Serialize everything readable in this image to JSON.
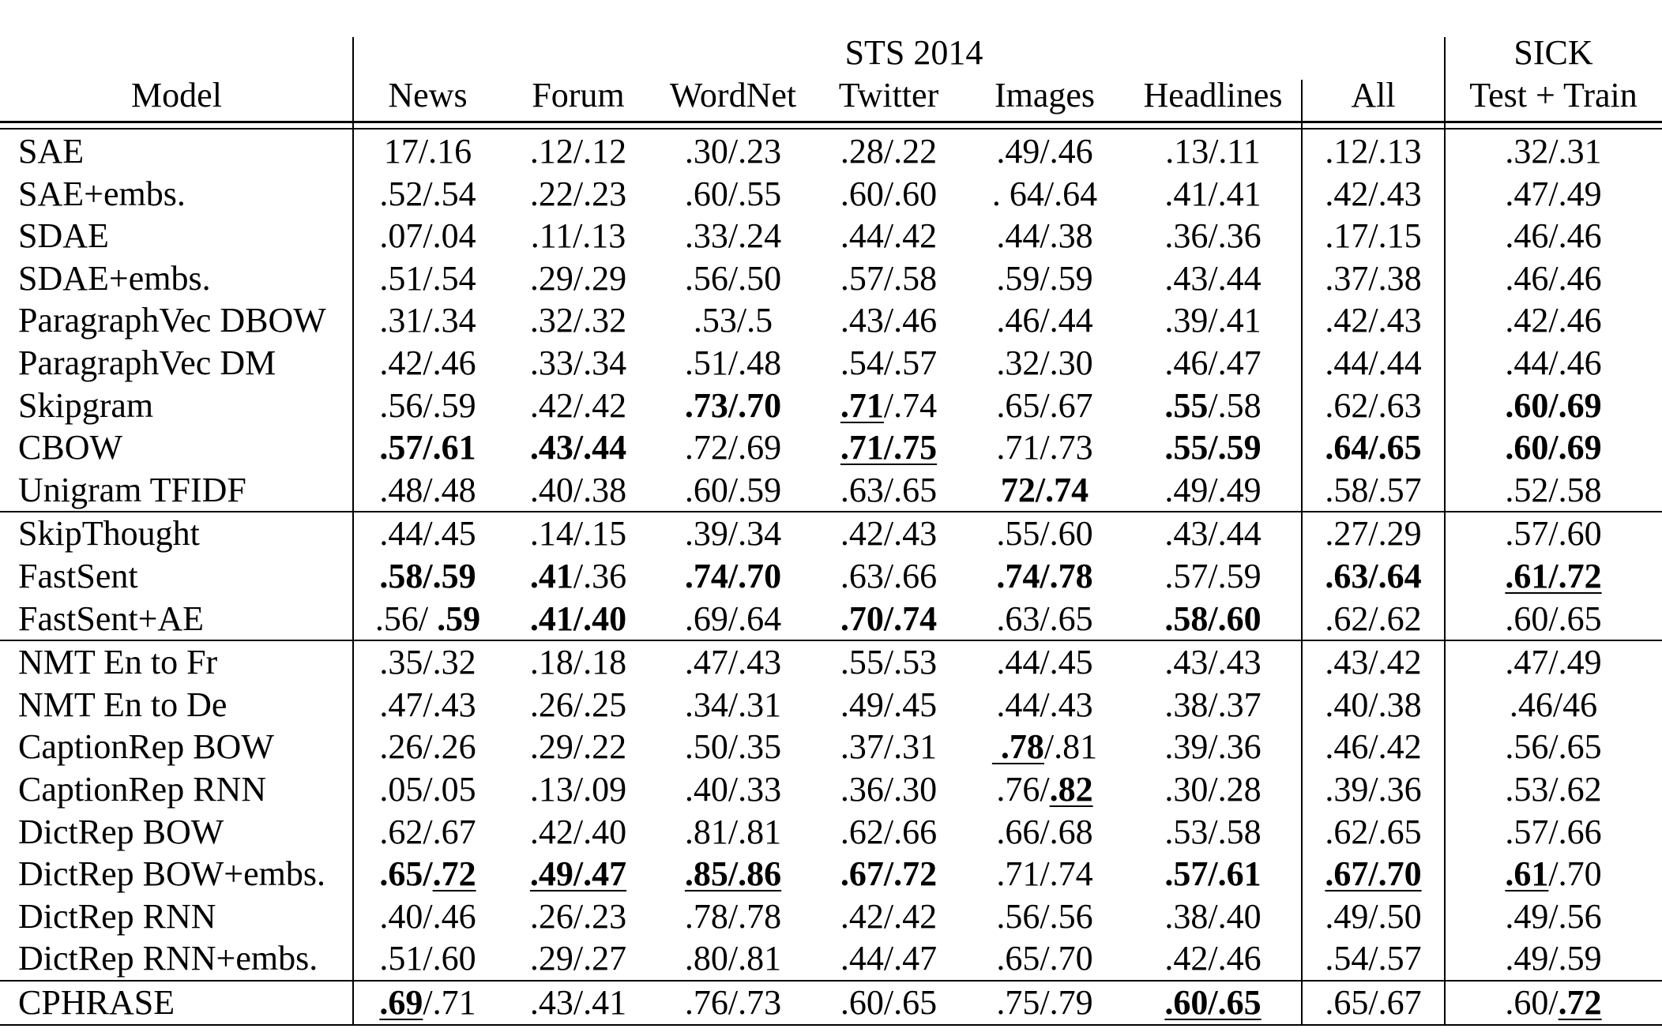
{
  "table": {
    "header": {
      "model_label": "Model",
      "sts_label": "STS 2014",
      "sick_label": "SICK",
      "columns": [
        "News",
        "Forum",
        "WordNet",
        "Twitter",
        "Images",
        "Headlines",
        "All",
        "Test + Train"
      ]
    },
    "groups": [
      {
        "rows": [
          {
            "model": "SAE",
            "cells": [
              "17/.16",
              ".12/.12",
              ".30/.23",
              ".28/.22",
              ".49/.46",
              ".13/.11",
              ".12/.13",
              ".32/.31"
            ]
          },
          {
            "model": "SAE+embs.",
            "cells": [
              ".52/.54",
              ".22/.23",
              ".60/.55",
              ".60/.60",
              ". 64/.64",
              ".41/.41",
              ".42/.43",
              ".47/.49"
            ]
          },
          {
            "model": "SDAE",
            "cells": [
              ".07/.04",
              ".11/.13",
              ".33/.24",
              ".44/.42",
              ".44/.38",
              ".36/.36",
              ".17/.15",
              ".46/.46"
            ]
          },
          {
            "model": "SDAE+embs.",
            "cells": [
              ".51/.54",
              ".29/.29",
              ".56/.50",
              ".57/.58",
              ".59/.59",
              ".43/.44",
              ".37/.38",
              ".46/.46"
            ]
          },
          {
            "model": "ParagraphVec DBOW",
            "cells": [
              ".31/.34",
              ".32/.32",
              ".53/.5",
              ".43/.46",
              ".46/.44",
              ".39/.41",
              ".42/.43",
              ".42/.46"
            ]
          },
          {
            "model": "ParagraphVec DM",
            "cells": [
              ".42/.46",
              ".33/.34",
              ".51/.48",
              ".54/.57",
              ".32/.30",
              ".46/.47",
              ".44/.44",
              ".44/.46"
            ]
          },
          {
            "model": "Skipgram",
            "cells": [
              ".56/.59",
              ".42/.42",
              [
                {
                  "text": ".73/.70",
                  "bold": true
                }
              ],
              [
                {
                  "text": ".71",
                  "bold": true,
                  "underline": true
                },
                {
                  "text": "/.74"
                }
              ],
              ".65/.67",
              [
                {
                  "text": ".55",
                  "bold": true
                },
                {
                  "text": "/.58"
                }
              ],
              ".62/.63",
              [
                {
                  "text": ".60/.69",
                  "bold": true
                }
              ]
            ]
          },
          {
            "model": "CBOW",
            "cells": [
              [
                {
                  "text": ".57/.61",
                  "bold": true
                }
              ],
              [
                {
                  "text": ".43/.44",
                  "bold": true
                }
              ],
              ".72/.69",
              [
                {
                  "text": ".71/.75",
                  "bold": true,
                  "underline": true
                }
              ],
              ".71/.73",
              [
                {
                  "text": ".55/.59",
                  "bold": true
                }
              ],
              [
                {
                  "text": ".64/.65",
                  "bold": true
                }
              ],
              [
                {
                  "text": ".60/.69",
                  "bold": true
                }
              ]
            ]
          },
          {
            "model": "Unigram TFIDF",
            "cells": [
              ".48/.48",
              ".40/.38",
              ".60/.59",
              ".63/.65",
              [
                {
                  "text": "72/.74",
                  "bold": true
                }
              ],
              ".49/.49",
              ".58/.57",
              ".52/.58"
            ]
          }
        ]
      },
      {
        "rows": [
          {
            "model": "SkipThought",
            "cells": [
              ".44/.45",
              ".14/.15",
              ".39/.34",
              ".42/.43",
              ".55/.60",
              ".43/.44",
              ".27/.29",
              ".57/.60"
            ]
          },
          {
            "model": "FastSent",
            "cells": [
              [
                {
                  "text": ".58/.59",
                  "bold": true
                }
              ],
              [
                {
                  "text": ".41",
                  "bold": true
                },
                {
                  "text": "/.36"
                }
              ],
              [
                {
                  "text": ".74/.70",
                  "bold": true
                }
              ],
              ".63/.66",
              [
                {
                  "text": ".74/.78",
                  "bold": true
                }
              ],
              ".57/.59",
              [
                {
                  "text": ".63/.64",
                  "bold": true
                }
              ],
              [
                {
                  "text": ".61/.72",
                  "bold": true,
                  "underline": true
                }
              ]
            ]
          },
          {
            "model": "FastSent+AE",
            "cells": [
              [
                {
                  "text": ".56/ "
                },
                {
                  "text": ".59",
                  "bold": true
                }
              ],
              [
                {
                  "text": ".41/.40",
                  "bold": true
                }
              ],
              ".69/.64",
              [
                {
                  "text": ".70/.74",
                  "bold": true
                }
              ],
              ".63/.65",
              [
                {
                  "text": ".58/.60",
                  "bold": true
                }
              ],
              ".62/.62",
              ".60/.65"
            ]
          }
        ]
      },
      {
        "rows": [
          {
            "model": "NMT En to Fr",
            "cells": [
              ".35/.32",
              ".18/.18",
              ".47/.43",
              ".55/.53",
              ".44/.45",
              ".43/.43",
              ".43/.42",
              ".47/.49"
            ]
          },
          {
            "model": "NMT En to De",
            "cells": [
              ".47/.43",
              ".26/.25",
              ".34/.31",
              ".49/.45",
              ".44/.43",
              ".38/.37",
              ".40/.38",
              ".46/46"
            ]
          },
          {
            "model": "CaptionRep BOW",
            "cells": [
              ".26/.26",
              ".29/.22",
              ".50/.35",
              ".37/.31",
              [
                {
                  "text": " .78",
                  "bold": true,
                  "underline": true
                },
                {
                  "text": "/.81"
                }
              ],
              ".39/.36",
              ".46/.42",
              ".56/.65"
            ]
          },
          {
            "model": "CaptionRep RNN",
            "cells": [
              ".05/.05",
              ".13/.09",
              ".40/.33",
              ".36/.30",
              [
                {
                  "text": ".76/"
                },
                {
                  "text": ".82",
                  "bold": true,
                  "underline": true
                }
              ],
              ".30/.28",
              ".39/.36",
              ".53/.62"
            ]
          },
          {
            "model": "DictRep BOW",
            "cells": [
              ".62/.67",
              ".42/.40",
              ".81/.81",
              ".62/.66",
              ".66/.68",
              ".53/.58",
              ".62/.65",
              ".57/.66"
            ]
          },
          {
            "model": "DictRep BOW+embs.",
            "cells": [
              [
                {
                  "text": ".65/",
                  "bold": true
                },
                {
                  "text": ".72",
                  "bold": true,
                  "underline": true
                }
              ],
              [
                {
                  "text": ".49/.47",
                  "bold": true,
                  "underline": true
                }
              ],
              [
                {
                  "text": ".85/.86",
                  "bold": true,
                  "underline": true
                }
              ],
              [
                {
                  "text": ".67/.72",
                  "bold": true
                }
              ],
              ".71/.74",
              [
                {
                  "text": ".57/.61",
                  "bold": true
                }
              ],
              [
                {
                  "text": ".67/.70",
                  "bold": true,
                  "underline": true
                }
              ],
              [
                {
                  "text": ".61",
                  "bold": true,
                  "underline": true
                },
                {
                  "text": "/.70"
                }
              ]
            ]
          },
          {
            "model": "DictRep RNN",
            "cells": [
              ".40/.46",
              ".26/.23",
              ".78/.78",
              ".42/.42",
              ".56/.56",
              ".38/.40",
              ".49/.50",
              ".49/.56"
            ]
          },
          {
            "model": "DictRep RNN+embs.",
            "cells": [
              ".51/.60",
              ".29/.27",
              ".80/.81",
              ".44/.47",
              ".65/.70",
              ".42/.46",
              ".54/.57",
              ".49/.59"
            ]
          }
        ]
      },
      {
        "rows": [
          {
            "model": "CPHRASE",
            "cells": [
              [
                {
                  "text": ".69",
                  "bold": true,
                  "underline": true
                },
                {
                  "text": "/.71"
                }
              ],
              ".43/.41",
              ".76/.73",
              ".60/.65",
              ".75/.79",
              [
                {
                  "text": ".60/.65",
                  "bold": true,
                  "underline": true
                }
              ],
              ".65/.67",
              [
                {
                  "text": ".60/"
                },
                {
                  "text": ".72",
                  "bold": true,
                  "underline": true
                }
              ]
            ]
          }
        ]
      }
    ]
  }
}
